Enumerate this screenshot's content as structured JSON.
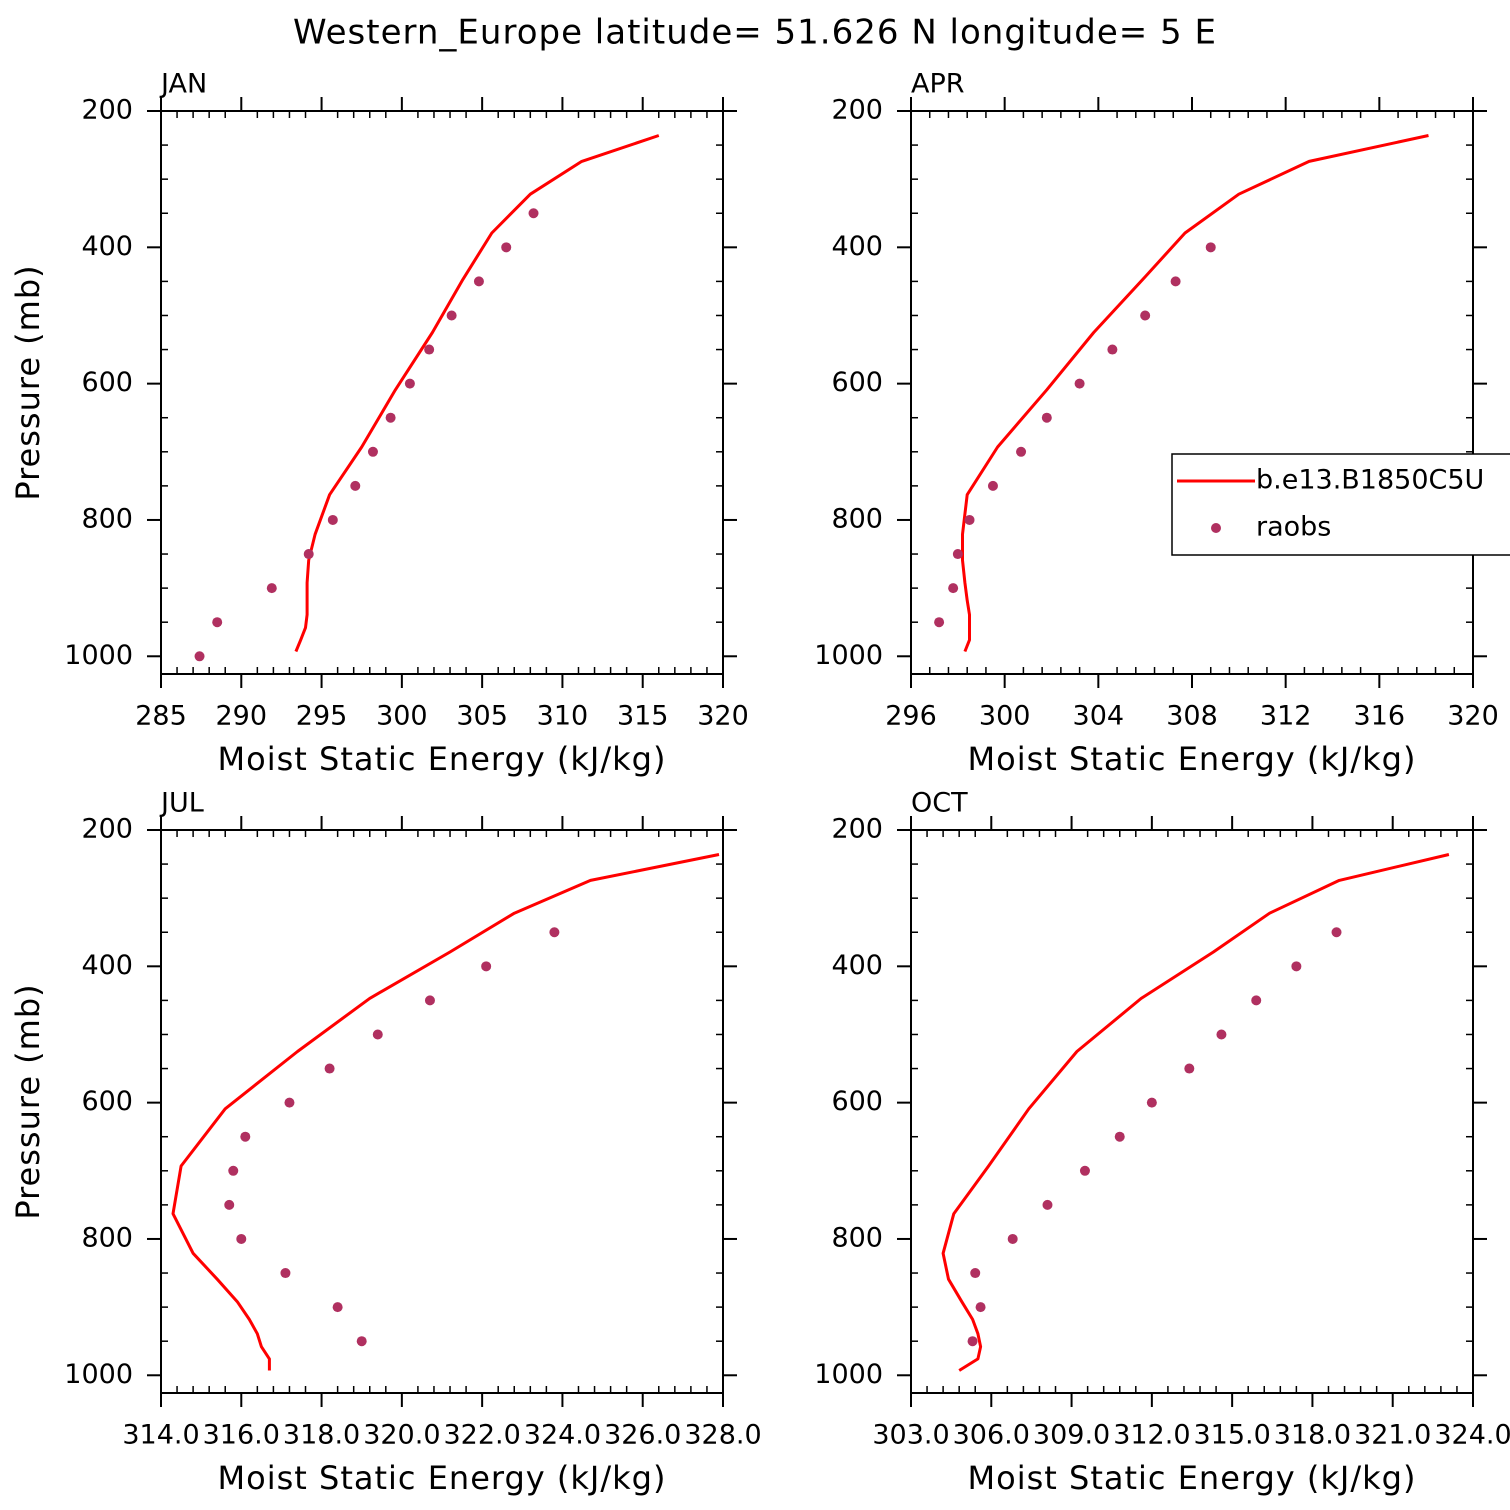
{
  "title": "Western_Europe  latitude= 51.626 N longitude= 5 E",
  "chart_data": [
    {
      "type": "line",
      "title": "JAN",
      "xlabel": "Moist Static Energy (kJ/kg)",
      "ylabel": "Pressure (mb)",
      "xlim": [
        285,
        320
      ],
      "xticks": [
        285,
        290,
        295,
        300,
        305,
        310,
        315,
        320
      ],
      "ylim": [
        1026,
        200
      ],
      "yticks": [
        200,
        400,
        600,
        800,
        1000
      ],
      "series": [
        {
          "type": "line",
          "color": "#ff0000",
          "x": [
            316.0,
            311.2,
            308.0,
            305.6,
            303.8,
            301.9,
            299.6,
            297.5,
            295.5,
            294.6,
            294.2,
            294.1,
            294.1,
            294.1,
            294.0,
            293.7,
            293.4
          ],
          "values": [
            236,
            274,
            322,
            379,
            447,
            525,
            609,
            693,
            763,
            821,
            859,
            892,
            918,
            939,
            958,
            976,
            993
          ]
        },
        {
          "type": "scatter",
          "color": "#b03060",
          "x": [
            308.2,
            306.5,
            304.8,
            303.1,
            301.7,
            300.5,
            299.3,
            298.2,
            297.1,
            295.7,
            294.2,
            291.9,
            288.5,
            287.4
          ],
          "values": [
            350,
            400,
            450,
            500,
            550,
            600,
            650,
            700,
            750,
            800,
            850,
            900,
            950,
            1000
          ]
        }
      ]
    },
    {
      "type": "line",
      "title": "APR",
      "xlabel": "Moist Static Energy (kJ/kg)",
      "legend": "right",
      "xlim": [
        296,
        320
      ],
      "xticks": [
        296,
        300,
        304,
        308,
        312,
        316,
        320
      ],
      "ylim": [
        1026,
        200
      ],
      "yticks": [
        200,
        400,
        600,
        800,
        1000
      ],
      "series": [
        {
          "type": "line",
          "name": "b.e13.B1850C5U",
          "color": "#ff0000",
          "x": [
            318.1,
            313.0,
            310.0,
            307.7,
            305.9,
            303.8,
            301.8,
            299.7,
            298.4,
            298.2,
            298.2,
            298.3,
            298.4,
            298.5,
            298.5,
            298.5,
            298.3
          ],
          "values": [
            236,
            274,
            322,
            379,
            447,
            525,
            609,
            693,
            763,
            821,
            859,
            892,
            918,
            939,
            958,
            976,
            993
          ]
        },
        {
          "type": "scatter",
          "name": "raobs",
          "color": "#b03060",
          "x": [
            308.8,
            307.3,
            306.0,
            304.6,
            303.2,
            301.8,
            300.7,
            299.5,
            298.5,
            298.0,
            297.8,
            297.2
          ],
          "values": [
            400,
            450,
            500,
            550,
            600,
            650,
            700,
            750,
            800,
            850,
            900,
            950
          ]
        }
      ]
    },
    {
      "type": "line",
      "title": "JUL",
      "xlabel": "Moist Static Energy (kJ/kg)",
      "ylabel": "Pressure (mb)",
      "xlim": [
        314,
        328
      ],
      "xticks": [
        {
          "value": 314,
          "label": "314.0"
        },
        {
          "value": 316,
          "label": "316.0"
        },
        {
          "value": 318,
          "label": "318.0"
        },
        {
          "value": 320,
          "label": "320.0"
        },
        {
          "value": 322,
          "label": "322.0"
        },
        {
          "value": 324,
          "label": "324.0"
        },
        {
          "value": 326,
          "label": "326.0"
        },
        {
          "value": 328,
          "label": "328.0"
        }
      ],
      "ylim": [
        1026,
        200
      ],
      "yticks": [
        200,
        400,
        600,
        800,
        1000
      ],
      "series": [
        {
          "type": "line",
          "color": "#ff0000",
          "x": [
            327.9,
            324.7,
            322.8,
            321.2,
            319.2,
            317.4,
            315.6,
            314.5,
            314.3,
            314.8,
            315.4,
            315.9,
            316.2,
            316.4,
            316.5,
            316.7,
            316.7
          ],
          "values": [
            236,
            274,
            322,
            379,
            447,
            525,
            609,
            693,
            763,
            821,
            859,
            892,
            918,
            939,
            958,
            976,
            993
          ]
        },
        {
          "type": "scatter",
          "color": "#b03060",
          "x": [
            323.8,
            322.1,
            320.7,
            319.4,
            318.2,
            317.2,
            316.1,
            315.8,
            315.7,
            316.0,
            317.1,
            318.4,
            319.0
          ],
          "values": [
            350,
            400,
            450,
            500,
            550,
            600,
            650,
            700,
            750,
            800,
            850,
            900,
            950
          ]
        }
      ]
    },
    {
      "type": "line",
      "title": "OCT",
      "xlabel": "Moist Static Energy (kJ/kg)",
      "xlim": [
        303,
        324
      ],
      "xticks": [
        {
          "value": 303,
          "label": "303.0"
        },
        {
          "value": 306,
          "label": "306.0"
        },
        {
          "value": 309,
          "label": "309.0"
        },
        {
          "value": 312,
          "label": "312.0"
        },
        {
          "value": 315,
          "label": "315.0"
        },
        {
          "value": 318,
          "label": "318.0"
        },
        {
          "value": 321,
          "label": "321.0"
        },
        {
          "value": 324,
          "label": "324.0"
        }
      ],
      "ylim": [
        1026,
        200
      ],
      "yticks": [
        200,
        400,
        600,
        800,
        1000
      ],
      "series": [
        {
          "type": "line",
          "color": "#ff0000",
          "x": [
            323.1,
            319.0,
            316.4,
            314.3,
            311.6,
            309.2,
            307.4,
            305.9,
            304.6,
            304.2,
            304.4,
            304.9,
            305.3,
            305.5,
            305.6,
            305.5,
            304.8
          ],
          "values": [
            236,
            274,
            322,
            379,
            447,
            525,
            609,
            693,
            763,
            821,
            859,
            892,
            918,
            939,
            958,
            976,
            993
          ]
        },
        {
          "type": "scatter",
          "color": "#b03060",
          "x": [
            318.9,
            317.4,
            315.9,
            314.6,
            313.4,
            312.0,
            310.8,
            309.5,
            308.1,
            306.8,
            305.4,
            305.6,
            305.3
          ],
          "values": [
            350,
            400,
            450,
            500,
            550,
            600,
            650,
            700,
            750,
            800,
            850,
            900,
            950
          ]
        }
      ]
    }
  ]
}
